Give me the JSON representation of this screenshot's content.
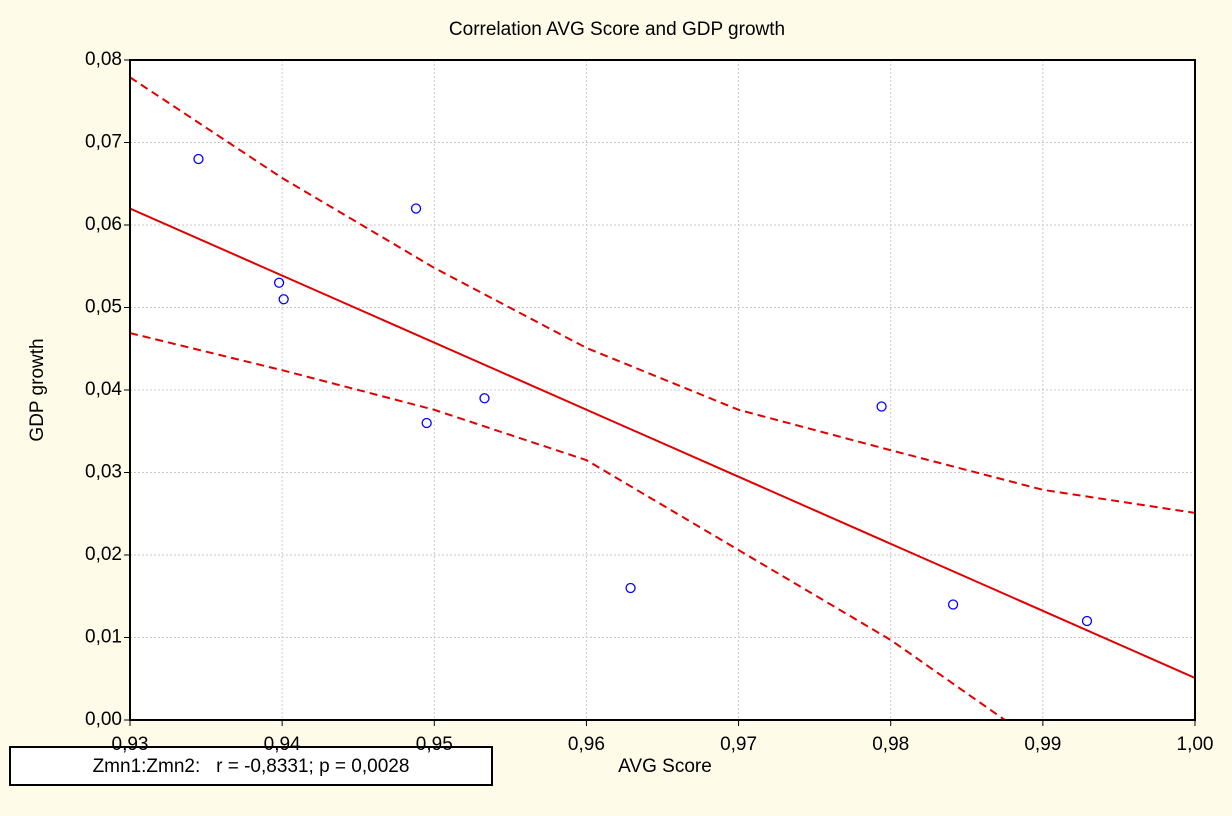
{
  "chart_data": {
    "type": "scatter",
    "title": "Correlation AVG Score and GDP growth",
    "x_label": "AVG Score",
    "y_label": "GDP growth",
    "annotation": "Zmn1:Zmn2:   r = -0,8331; p = 0,0028",
    "xlim": [
      0.93,
      1.0
    ],
    "ylim": [
      0,
      0.08
    ],
    "xticks": [
      {
        "value": 0.93,
        "label": "0,93"
      },
      {
        "value": 0.94,
        "label": "0,94"
      },
      {
        "value": 0.95,
        "label": "0,95"
      },
      {
        "value": 0.96,
        "label": "0,96"
      },
      {
        "value": 0.97,
        "label": "0,97"
      },
      {
        "value": 0.98,
        "label": "0,98"
      },
      {
        "value": 0.99,
        "label": "0,99"
      },
      {
        "value": 1.0,
        "label": "1,00"
      }
    ],
    "yticks": [
      {
        "value": 0,
        "label": "0,00"
      },
      {
        "value": 0.01,
        "label": "0,01"
      },
      {
        "value": 0.02,
        "label": "0,02"
      },
      {
        "value": 0.03,
        "label": "0,03"
      },
      {
        "value": 0.04,
        "label": "0,04"
      },
      {
        "value": 0.05,
        "label": "0,05"
      },
      {
        "value": 0.06,
        "label": "0,06"
      },
      {
        "value": 0.07,
        "label": "0,07"
      },
      {
        "value": 0.08,
        "label": "0,08"
      }
    ],
    "grid": true,
    "series": [
      {
        "kind": "points",
        "color": "#0000ff",
        "x": [
          0.9345,
          0.9398,
          0.9401,
          0.9488,
          0.9495,
          0.9533,
          0.9629,
          0.9794,
          0.9841,
          0.9929
        ],
        "values": [
          0.068,
          0.053,
          0.051,
          0.062,
          0.036,
          0.039,
          0.016,
          0.038,
          0.014,
          0.012
        ]
      },
      {
        "kind": "line",
        "color": "#e00000",
        "dashed": false,
        "x": [
          0.93,
          1.0
        ],
        "values": [
          0.062,
          0.0051
        ]
      },
      {
        "kind": "line",
        "color": "#e00000",
        "dashed": true,
        "x": [
          0.93,
          0.94,
          0.95,
          0.96,
          0.97,
          0.98,
          0.99,
          1.0
        ],
        "values": [
          0.0779,
          0.0657,
          0.0548,
          0.0451,
          0.0376,
          0.0327,
          0.0279,
          0.0251
        ]
      },
      {
        "kind": "line",
        "color": "#e00000",
        "dashed": true,
        "x": [
          0.93,
          0.94,
          0.95,
          0.96,
          0.97,
          0.98,
          0.9875
        ],
        "values": [
          0.0469,
          0.0424,
          0.0376,
          0.0315,
          0.0206,
          0.0097,
          0
        ]
      }
    ]
  }
}
